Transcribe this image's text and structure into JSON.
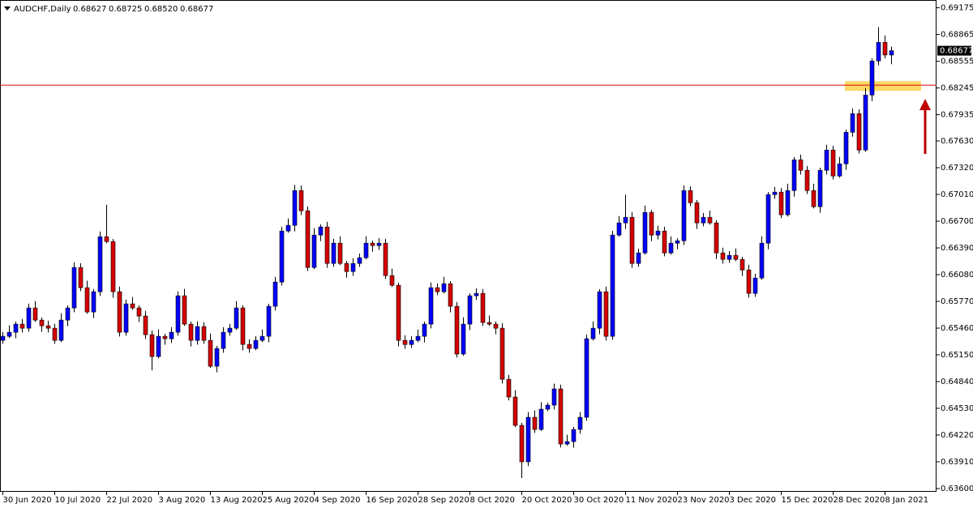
{
  "chart_data": {
    "type": "candlestick",
    "header": {
      "symbol": "AUDCHF,Daily",
      "value_labels": [
        "0.68627",
        "0.68725",
        "0.68520",
        "0.68677"
      ]
    },
    "categories": [
      "30 Jun 2020",
      null,
      null,
      null,
      null,
      null,
      null,
      null,
      "10 Jul 2020",
      null,
      null,
      null,
      null,
      null,
      null,
      null,
      "22 Jul 2020",
      null,
      null,
      null,
      null,
      null,
      null,
      null,
      "3 Aug 2020",
      null,
      null,
      null,
      null,
      null,
      null,
      null,
      "13 Aug 2020",
      null,
      null,
      null,
      null,
      null,
      null,
      null,
      "25 Aug 2020",
      null,
      null,
      null,
      null,
      null,
      null,
      null,
      "4 Sep 2020",
      null,
      null,
      null,
      null,
      null,
      null,
      null,
      "16 Sep 2020",
      null,
      null,
      null,
      null,
      null,
      null,
      null,
      "28 Sep 2020",
      null,
      null,
      null,
      null,
      null,
      null,
      null,
      "8 Oct 2020",
      null,
      null,
      null,
      null,
      null,
      null,
      null,
      "20 Oct 2020",
      null,
      null,
      null,
      null,
      null,
      null,
      null,
      "30 Oct 2020",
      null,
      null,
      null,
      null,
      null,
      null,
      null,
      "11 Nov 2020",
      null,
      null,
      null,
      null,
      null,
      null,
      null,
      "23 Nov 2020",
      null,
      null,
      null,
      null,
      null,
      null,
      null,
      "3 Dec 2020",
      null,
      null,
      null,
      null,
      null,
      null,
      null,
      "15 Dec 2020",
      null,
      null,
      null,
      null,
      null,
      null,
      null,
      "28 Dec 2020",
      null,
      null,
      null,
      null,
      null,
      null,
      null,
      "8 Jan 2021",
      null
    ],
    "open": [
      0.65318,
      0.65365,
      0.65412,
      0.65506,
      0.65459,
      0.65694,
      0.65553,
      0.65487,
      0.65459,
      0.65318,
      0.65553,
      0.65694,
      0.66163,
      0.65929,
      0.65647,
      0.65882,
      0.6652,
      0.66464,
      0.65882,
      0.65412,
      0.65741,
      0.65694,
      0.656,
      0.65384,
      0.6513,
      0.65365,
      0.65337,
      0.65412,
      0.65835,
      0.65506,
      0.65318,
      0.65478,
      0.65318,
      0.65018,
      0.65224,
      0.65412,
      0.65459,
      0.65694,
      0.65271,
      0.65224,
      0.65318,
      0.65365,
      0.65713,
      0.65994,
      0.66586,
      0.66652,
      0.67055,
      0.66821,
      0.66163,
      0.66539,
      0.66633,
      0.6621,
      0.66445,
      0.6621,
      0.66116,
      0.6621,
      0.66276,
      0.66445,
      0.66417,
      0.66445,
      0.66069,
      0.65957,
      0.65318,
      0.6527,
      0.65318,
      0.65365,
      0.65506,
      0.65929,
      0.65882,
      0.65975,
      0.65713,
      0.65159,
      0.65506,
      0.65835,
      0.65863,
      0.65525,
      0.65506,
      0.65459,
      0.64867,
      0.64661,
      0.64332,
      0.6391,
      0.64426,
      0.64285,
      0.6452,
      0.64567,
      0.64755,
      0.64116,
      0.64144,
      0.64285,
      0.64426,
      0.65337,
      0.65459,
      0.65882,
      0.65365,
      0.66539,
      0.6668,
      0.66745,
      0.6621,
      0.66332,
      0.66802,
      0.66539,
      0.66586,
      0.66332,
      0.66445,
      0.66473,
      0.67055,
      0.66914,
      0.6668,
      0.66745,
      0.6668,
      0.66332,
      0.66257,
      0.66304,
      0.66257,
      0.66135,
      0.65863,
      0.66041,
      0.66445,
      0.67008,
      0.67037,
      0.66774,
      0.67055,
      0.67412,
      0.6729,
      0.67055,
      0.66868,
      0.6729,
      0.67525,
      0.67224,
      0.67365,
      0.67731,
      0.67947,
      0.67525,
      0.68163,
      0.68558,
      0.68774,
      0.68627
    ],
    "high": [
      0.65415,
      0.65492,
      0.65536,
      0.65566,
      0.65744,
      0.65774,
      0.65583,
      0.65547,
      0.65509,
      0.65633,
      0.65724,
      0.66223,
      0.66213,
      0.66009,
      0.65912,
      0.6658,
      0.6689,
      0.66494,
      0.65942,
      0.65791,
      0.65821,
      0.65724,
      0.6566,
      0.65434,
      0.65445,
      0.65395,
      0.65472,
      0.65885,
      0.65915,
      0.65536,
      0.65538,
      0.65528,
      0.65398,
      0.65254,
      0.65472,
      0.65509,
      0.65774,
      0.65724,
      0.65331,
      0.65368,
      0.65445,
      0.65743,
      0.66054,
      0.66636,
      0.66732,
      0.67121,
      0.67115,
      0.66871,
      0.66619,
      0.66663,
      0.66693,
      0.66495,
      0.66525,
      0.6624,
      0.6627,
      0.66326,
      0.66525,
      0.66475,
      0.66505,
      0.66495,
      0.66149,
      0.65987,
      0.65378,
      0.65368,
      0.65445,
      0.65536,
      0.65989,
      0.65979,
      0.66055,
      0.66005,
      0.65763,
      0.65586,
      0.65865,
      0.65923,
      0.65913,
      0.65605,
      0.65536,
      0.65519,
      0.64917,
      0.64741,
      0.64362,
      0.64486,
      0.64506,
      0.646,
      0.64597,
      0.64815,
      0.64805,
      0.64224,
      0.64315,
      0.64486,
      0.65387,
      0.65539,
      0.65912,
      0.65942,
      0.66589,
      0.6676,
      0.67008,
      0.66805,
      0.66382,
      0.66882,
      0.66832,
      0.66646,
      0.66636,
      0.66525,
      0.66503,
      0.67115,
      0.67105,
      0.66944,
      0.66795,
      0.66825,
      0.6671,
      0.66392,
      0.66354,
      0.66384,
      0.66287,
      0.66195,
      0.66091,
      0.66525,
      0.67038,
      0.67097,
      0.67087,
      0.67135,
      0.67442,
      0.67472,
      0.6734,
      0.67135,
      0.6732,
      0.67585,
      0.67575,
      0.67445,
      0.67761,
      0.68007,
      0.67997,
      0.68243,
      0.68588,
      0.6895,
      0.68854,
      0.68725
    ],
    "low": [
      0.65278,
      0.65345,
      0.65342,
      0.65409,
      0.65419,
      0.65533,
      0.65417,
      0.65409,
      0.65278,
      0.65298,
      0.65483,
      0.65644,
      0.65889,
      0.65627,
      0.65577,
      0.65832,
      0.66444,
      0.65812,
      0.65362,
      0.65372,
      0.65674,
      0.6553,
      0.65334,
      0.6497,
      0.6511,
      0.65267,
      0.65287,
      0.65372,
      0.65486,
      0.65248,
      0.65268,
      0.65278,
      0.64998,
      0.64948,
      0.65174,
      0.65372,
      0.65439,
      0.65201,
      0.65174,
      0.65204,
      0.65298,
      0.65295,
      0.65663,
      0.65954,
      0.66566,
      0.66582,
      0.66771,
      0.66123,
      0.66143,
      0.66469,
      0.6616,
      0.6617,
      0.6619,
      0.66046,
      0.66066,
      0.6617,
      0.66256,
      0.66347,
      0.66367,
      0.66029,
      0.65937,
      0.65248,
      0.6522,
      0.6523,
      0.65298,
      0.65295,
      0.65456,
      0.65842,
      0.65862,
      0.65643,
      0.65119,
      0.65139,
      0.65436,
      0.65785,
      0.65485,
      0.65486,
      0.65389,
      0.64817,
      0.64621,
      0.64312,
      0.63722,
      0.6386,
      0.64245,
      0.64265,
      0.64497,
      0.64517,
      0.64076,
      0.64096,
      0.64074,
      0.64235,
      0.64386,
      0.65317,
      0.65389,
      0.65315,
      0.65325,
      0.66519,
      0.6661,
      0.6616,
      0.6617,
      0.66312,
      0.66469,
      0.66489,
      0.66292,
      0.66312,
      0.66375,
      0.66423,
      0.66874,
      0.6661,
      0.6664,
      0.6666,
      0.66262,
      0.66207,
      0.66217,
      0.66237,
      0.66065,
      0.65813,
      0.65823,
      0.66021,
      0.66375,
      0.66958,
      0.66734,
      0.66754,
      0.66985,
      0.6724,
      0.67015,
      0.66848,
      0.66798,
      0.6724,
      0.67184,
      0.67204,
      0.67295,
      0.67681,
      0.67485,
      0.67505,
      0.68093,
      0.68508,
      0.68587,
      0.6852
    ],
    "close": [
      0.65365,
      0.65412,
      0.65506,
      0.65459,
      0.65694,
      0.65553,
      0.65487,
      0.65459,
      0.65318,
      0.65553,
      0.65694,
      0.66163,
      0.65929,
      0.65647,
      0.65882,
      0.6652,
      0.66464,
      0.65882,
      0.65412,
      0.65741,
      0.65694,
      0.656,
      0.65384,
      0.6513,
      0.65365,
      0.65337,
      0.65412,
      0.65835,
      0.65506,
      0.65318,
      0.65478,
      0.65318,
      0.65018,
      0.65224,
      0.65412,
      0.65459,
      0.65694,
      0.65271,
      0.65224,
      0.65318,
      0.65365,
      0.65713,
      0.65994,
      0.66586,
      0.66652,
      0.67055,
      0.66821,
      0.66163,
      0.66539,
      0.66633,
      0.6621,
      0.66445,
      0.6621,
      0.66116,
      0.6621,
      0.66276,
      0.66445,
      0.66417,
      0.66445,
      0.66069,
      0.65957,
      0.65318,
      0.6527,
      0.65318,
      0.65365,
      0.65506,
      0.65929,
      0.65882,
      0.65975,
      0.65713,
      0.65159,
      0.65506,
      0.65835,
      0.65863,
      0.65525,
      0.65506,
      0.65459,
      0.64867,
      0.64661,
      0.64332,
      0.6391,
      0.64426,
      0.64285,
      0.6452,
      0.64567,
      0.64755,
      0.64116,
      0.64144,
      0.64285,
      0.64426,
      0.65337,
      0.65459,
      0.65882,
      0.65365,
      0.66539,
      0.6668,
      0.66745,
      0.6621,
      0.66332,
      0.66802,
      0.66539,
      0.66586,
      0.66332,
      0.66445,
      0.66473,
      0.67055,
      0.66914,
      0.6668,
      0.66745,
      0.6668,
      0.66332,
      0.66257,
      0.66304,
      0.66257,
      0.66135,
      0.65863,
      0.66041,
      0.66445,
      0.67008,
      0.67037,
      0.66774,
      0.67055,
      0.67412,
      0.6729,
      0.67055,
      0.66868,
      0.6729,
      0.67525,
      0.67224,
      0.67365,
      0.67731,
      0.67947,
      0.67525,
      0.68163,
      0.68558,
      0.68774,
      0.68627,
      0.68677
    ],
    "up_color": "#0000ff",
    "down_color": "#d40000",
    "wick_color": "#000000",
    "level": 0.68277,
    "level_color": "#e00000",
    "zone": [
      0.68211,
      0.68324
    ],
    "zone_color": "#ffd24d",
    "ylim": [
      0.63562,
      0.69265
    ],
    "yticks": [
      0.69175,
      0.68865,
      0.68555,
      0.68245,
      0.67935,
      {
        "value": 0.6763,
        "label": "0.67630"
      },
      {
        "value": 0.6732,
        "label": "0.67320"
      },
      {
        "value": 0.6701,
        "label": "0.67010"
      },
      {
        "value": 0.667,
        "label": "0.66700"
      },
      {
        "value": 0.6639,
        "label": "0.66390"
      },
      {
        "value": 0.6608,
        "label": "0.66080"
      },
      {
        "value": 0.6577,
        "label": "0.65770"
      },
      {
        "value": 0.6546,
        "label": "0.65460"
      },
      {
        "value": 0.6515,
        "label": "0.65150"
      },
      {
        "value": 0.6484,
        "label": "0.64840"
      },
      {
        "value": 0.6453,
        "label": "0.64530"
      },
      {
        "value": 0.6422,
        "label": "0.64220"
      },
      {
        "value": 0.6391,
        "label": "0.63910"
      },
      {
        "value": 0.636,
        "label": "0.63600"
      }
    ],
    "grid": false
  }
}
